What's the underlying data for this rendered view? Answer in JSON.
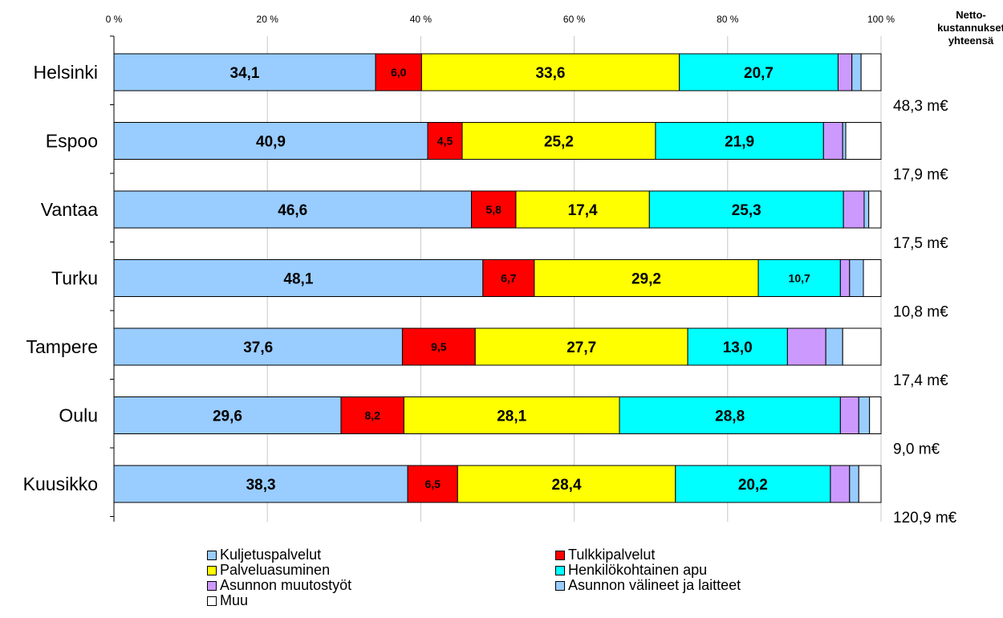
{
  "chart_data": {
    "type": "bar",
    "orientation": "horizontal",
    "stacked": "percent",
    "categories": [
      "Helsinki",
      "Espoo",
      "Vantaa",
      "Turku",
      "Tampere",
      "Oulu",
      "Kuusikko"
    ],
    "xlim": [
      0,
      100
    ],
    "x_ticks": [
      "0 %",
      "20 %",
      "40 %",
      "60 %",
      "80 %",
      "100 %"
    ],
    "grid": true,
    "legend_position": "bottom",
    "series": [
      {
        "name": "Kuljetuspalvelut",
        "color": "#99ccff",
        "values": [
          34.1,
          40.9,
          46.6,
          48.1,
          37.6,
          29.6,
          38.3
        ],
        "labels": [
          "34,1",
          "40,9",
          "46,6",
          "48,1",
          "37,6",
          "29,6",
          "38,3"
        ]
      },
      {
        "name": "Tulkkipalvelut",
        "color": "#ff0000",
        "values": [
          6.0,
          4.5,
          5.8,
          6.7,
          9.5,
          8.2,
          6.5
        ],
        "labels": [
          "6,0",
          "4,5",
          "5,8",
          "6,7",
          "9,5",
          "8,2",
          "6,5"
        ]
      },
      {
        "name": "Palveluasuminen",
        "color": "#ffff00",
        "values": [
          33.6,
          25.2,
          17.4,
          29.2,
          27.7,
          28.1,
          28.4
        ],
        "labels": [
          "33,6",
          "25,2",
          "17,4",
          "29,2",
          "27,7",
          "28,1",
          "28,4"
        ]
      },
      {
        "name": "Henkilökohtainen apu",
        "color": "#00ffff",
        "values": [
          20.7,
          21.9,
          25.3,
          10.7,
          13.0,
          28.8,
          20.2
        ],
        "labels": [
          "20,7",
          "21,9",
          "25,3",
          "10,7",
          "13,0",
          "28,8",
          "20,2"
        ]
      },
      {
        "name": "Asunnon muutostyöt",
        "color": "#cc99ff",
        "values": [
          1.8,
          2.5,
          2.7,
          1.2,
          5.0,
          2.4,
          2.5
        ],
        "labels": [
          "",
          "",
          "",
          "",
          "",
          "",
          ""
        ]
      },
      {
        "name": "Asunnon välineet ja laitteet",
        "color": "#99ccff",
        "values": [
          1.2,
          0.4,
          0.6,
          1.8,
          2.2,
          1.4,
          1.2
        ],
        "labels": [
          "",
          "",
          "",
          "",
          "",
          "",
          ""
        ]
      },
      {
        "name": "Muu",
        "color": "#ffffff",
        "values": [
          2.6,
          4.6,
          1.6,
          2.3,
          5.0,
          1.5,
          2.9
        ],
        "labels": [
          "",
          "",
          "",
          "",
          "",
          "",
          ""
        ]
      }
    ],
    "totals_header": "Netto-\nkustannukset\nyhteensä",
    "totals": [
      "48,3 m€",
      "17,9 m€",
      "17,5 m€",
      "10,8 m€",
      "17,4 m€",
      "9,0 m€",
      "120,9 m€"
    ]
  }
}
